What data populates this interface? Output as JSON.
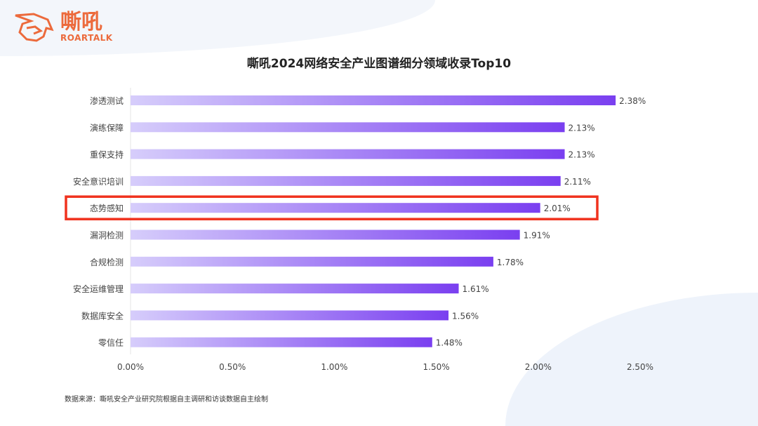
{
  "logo": {
    "cn": "嘶吼",
    "en": "ROARTALK"
  },
  "source": "数据来源：嘶吼安全产业研究院根据自主调研和访谈数据自主绘制",
  "highlight_color": "#f0321e",
  "chart_data": {
    "type": "bar",
    "orientation": "horizontal",
    "title": "嘶吼2024网络安全产业图谱细分领域收录Top10",
    "categories": [
      "渗透测试",
      "演练保障",
      "重保支持",
      "安全意识培训",
      "态势感知",
      "漏洞检测",
      "合规检测",
      "安全运维管理",
      "数据库安全",
      "零信任"
    ],
    "values": [
      2.38,
      2.13,
      2.13,
      2.11,
      2.01,
      1.91,
      1.78,
      1.61,
      1.56,
      1.48
    ],
    "data_labels": [
      "2.38%",
      "2.13%",
      "2.13%",
      "2.11%",
      "2.01%",
      "1.91%",
      "1.78%",
      "1.61%",
      "1.56%",
      "1.48%"
    ],
    "xticks": [
      0,
      0.5,
      1,
      1.5,
      2,
      2.5
    ],
    "xtick_labels": [
      "0.00%",
      "0.50%",
      "1.00%",
      "1.50%",
      "2.00%",
      "2.50%"
    ],
    "xlim": [
      0,
      2.5
    ],
    "highlighted": "态势感知",
    "colors": {
      "start": "#d6cdfb",
      "end": "#7a3ff0"
    }
  }
}
